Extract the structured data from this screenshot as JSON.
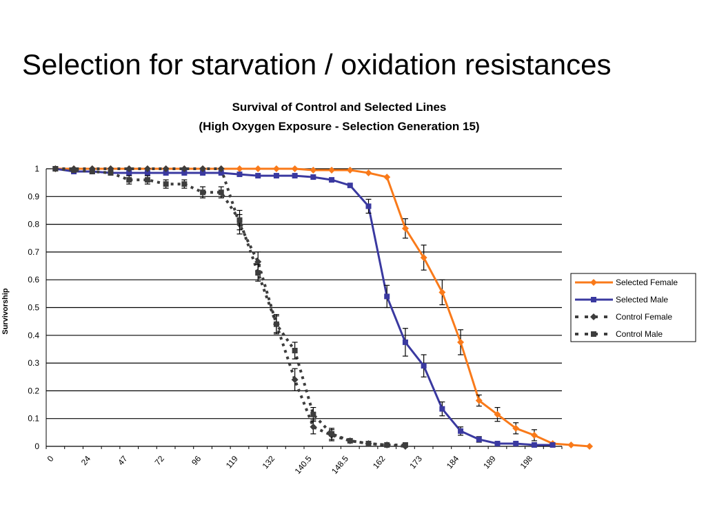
{
  "slide": {
    "title": "Selection for starvation / oxidation resistances"
  },
  "chart_data": {
    "type": "line",
    "title_lines": [
      "Survival of Control and Selected Lines",
      "(High Oxygen Exposure - Selection Generation 15)"
    ],
    "ylabel": "Survivorship",
    "xlabel": "",
    "ylim": [
      0,
      1
    ],
    "yticks": [
      "0",
      "0.1",
      "0.2",
      "0.3",
      "0.4",
      "0.5",
      "0.6",
      "0.7",
      "0.8",
      "0.9",
      "1"
    ],
    "xtick_labels": [
      "0",
      "24",
      "47",
      "72",
      "96",
      "119",
      "132",
      "140.5",
      "148.5",
      "162",
      "173",
      "184",
      "189",
      "198"
    ],
    "grid": true,
    "legend_position": "right",
    "series": [
      {
        "name": "Selected Female",
        "color": "#f97a1a",
        "style": "solid",
        "marker": "diamond",
        "values": [
          1,
          1,
          1,
          1,
          1,
          1,
          1,
          1,
          1,
          1,
          1,
          1,
          1,
          1,
          0.995,
          0.995,
          0.995,
          0.985,
          0.97,
          0.785,
          0.68,
          0.555,
          0.375,
          0.165,
          0.115,
          0.065,
          0.04,
          0.01,
          0.005,
          0.0
        ],
        "errors": [
          0,
          0,
          0,
          0,
          0,
          0,
          0,
          0,
          0,
          0,
          0,
          0,
          0,
          0,
          0,
          0,
          0,
          0,
          0,
          0.035,
          0.045,
          0.045,
          0.045,
          0.02,
          0.025,
          0.02,
          0.02,
          0,
          0,
          0
        ]
      },
      {
        "name": "Selected Male",
        "color": "#3a39a0",
        "style": "solid",
        "marker": "square",
        "values": [
          1,
          0.99,
          0.99,
          0.985,
          0.985,
          0.985,
          0.985,
          0.985,
          0.985,
          0.985,
          0.98,
          0.975,
          0.975,
          0.975,
          0.97,
          0.96,
          0.94,
          0.865,
          0.54,
          0.375,
          0.29,
          0.135,
          0.055,
          0.025,
          0.01,
          0.01,
          0.005,
          0.005
        ],
        "errors": [
          0,
          0,
          0,
          0,
          0,
          0,
          0,
          0,
          0,
          0,
          0,
          0,
          0,
          0,
          0,
          0,
          0,
          0.025,
          0.04,
          0.05,
          0.04,
          0.025,
          0.015,
          0.01,
          0,
          0,
          0,
          0
        ]
      },
      {
        "name": "Control Female",
        "color": "#3d3d3d",
        "style": "dotted",
        "marker": "diamond",
        "values": [
          1,
          1,
          1,
          1,
          1,
          1,
          1,
          1,
          1,
          1,
          0.8,
          0.665,
          0.44,
          0.24,
          0.07,
          0.04,
          0.02,
          0.01,
          0.005,
          0.0
        ],
        "errors": [
          0,
          0,
          0,
          0,
          0,
          0,
          0,
          0,
          0,
          0,
          0.035,
          0.035,
          0.035,
          0.04,
          0.025,
          0.02,
          0,
          0,
          0,
          0
        ]
      },
      {
        "name": "Control Male",
        "color": "#3d3d3d",
        "style": "dotted",
        "marker": "square",
        "values": [
          1,
          0.995,
          0.99,
          0.985,
          0.96,
          0.96,
          0.945,
          0.945,
          0.915,
          0.915,
          0.815,
          0.625,
          0.44,
          0.345,
          0.115,
          0.045,
          0.02,
          0.01,
          0.005,
          0.005
        ],
        "errors": [
          0,
          0,
          0,
          0,
          0.015,
          0.015,
          0.015,
          0.015,
          0.02,
          0.02,
          0.035,
          0.03,
          0.03,
          0.03,
          0.025,
          0.02,
          0,
          0,
          0,
          0
        ]
      }
    ]
  }
}
